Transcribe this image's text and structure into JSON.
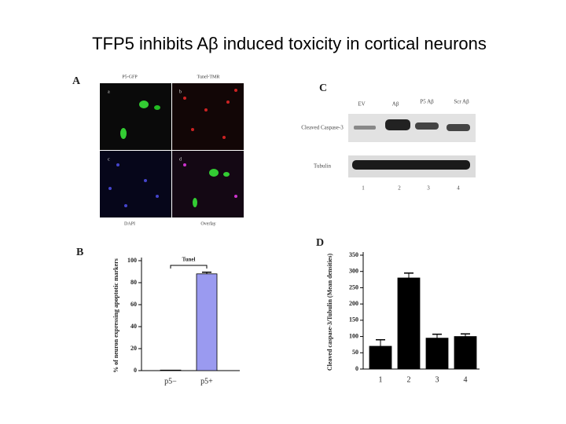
{
  "title": "TFP5 inhibits Aβ induced toxicity in cortical neurons",
  "panel_a": {
    "label": "A",
    "top_labels": [
      "P5-GFP",
      "Tunel-TMR"
    ],
    "bottom_labels": [
      "DAPI",
      "Overlay"
    ],
    "cells": [
      "a",
      "b",
      "c",
      "d"
    ]
  },
  "panel_c": {
    "label": "C",
    "lanes": [
      "EV",
      "Aβ",
      "P5 Aβ",
      "Scr Aβ"
    ],
    "rows": [
      "Cleaved Caspase-3",
      "Tubulin"
    ],
    "lane_numbers": [
      "1",
      "2",
      "3",
      "4"
    ]
  },
  "chart_data": [
    {
      "type": "bar",
      "label": "B",
      "annotation": "Tunel",
      "y_label": "% of neuron expressing apoptotic markers",
      "categories": [
        "p5−",
        "p5+"
      ],
      "values": [
        0.5,
        88
      ],
      "errors": [
        0,
        1.5
      ],
      "color": "#9a9af0",
      "ylim": [
        0,
        100
      ],
      "yticks": [
        0,
        20,
        40,
        60,
        80,
        100
      ]
    },
    {
      "type": "bar",
      "label": "D",
      "y_label": "Cleaved caspase-3/Tubulin (Mean densities)",
      "categories": [
        "1",
        "2",
        "3",
        "4"
      ],
      "values": [
        70,
        280,
        95,
        100
      ],
      "errors": [
        20,
        15,
        12,
        8
      ],
      "color": "#000000",
      "ylim": [
        0,
        350
      ],
      "yticks": [
        0,
        50,
        100,
        150,
        200,
        250,
        300,
        350
      ]
    }
  ]
}
